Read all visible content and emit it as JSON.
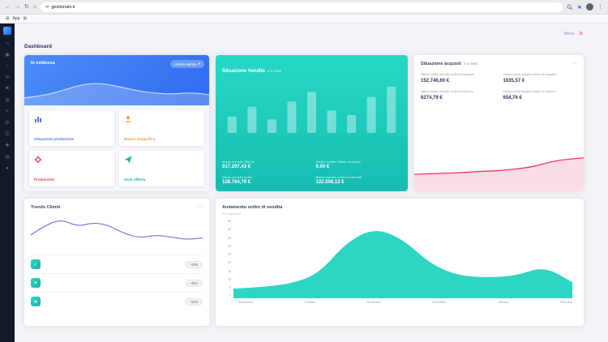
{
  "colors": {
    "primary_blue": "#2e6bf0",
    "teal": "#1fcdbb",
    "red": "#f5365c",
    "orange": "#fb6340",
    "purple": "#8965e0",
    "pink_fill": "#fbdce4",
    "sidebar_bg": "#121a2b"
  },
  "browser": {
    "url": "gestionale.it",
    "bookmark_app": "App",
    "icons": {
      "back": "←",
      "forward": "→",
      "reload": "↻",
      "home": "⌂",
      "star": "★",
      "menu": "⋮",
      "site": "⇄",
      "grid": "⊞"
    }
  },
  "sidebar": {
    "icons": [
      {
        "name": "dashboard",
        "glyph": "⌂"
      },
      {
        "name": "products",
        "glyph": "▣"
      },
      {
        "name": "reports",
        "glyph": "◔"
      },
      {
        "name": "messages",
        "glyph": "✉"
      },
      {
        "name": "projects",
        "glyph": "⚑"
      },
      {
        "name": "modules",
        "glyph": "⊞"
      },
      {
        "name": "documents",
        "glyph": "✎"
      },
      {
        "name": "settings",
        "glyph": "⚙"
      },
      {
        "name": "lists",
        "glyph": "☰"
      },
      {
        "name": "create",
        "glyph": "✚"
      },
      {
        "name": "archive",
        "glyph": "▤"
      },
      {
        "name": "status",
        "glyph": "●"
      }
    ]
  },
  "header": {
    "menu": "Menu",
    "brand": "✳"
  },
  "page_title": "Dashboard",
  "evidenza": {
    "title": "In evidenza",
    "dropdown": "Admin vetrina",
    "chevron": "▾",
    "tiles": [
      {
        "label": "Situazione produzione"
      },
      {
        "label": "Nuova anagrafica"
      },
      {
        "label": "Produzione"
      },
      {
        "label": "Invio offerta"
      }
    ],
    "wave": [
      22,
      30,
      48,
      70,
      78,
      66,
      50,
      40,
      36,
      42,
      34
    ]
  },
  "vendite": {
    "title": "Situazione Vendite",
    "period": "a 3 mesi",
    "bars": [
      22,
      35,
      18,
      42,
      55,
      30,
      24,
      48,
      62
    ],
    "stats": [
      {
        "label": "Media mensile Offerte",
        "value": "517.297,43 €"
      },
      {
        "label": "Media vendita Offerte accettate",
        "value": "0,00 €"
      },
      {
        "label": "Media mensile ordini",
        "value": "128.764,79 €"
      },
      {
        "label": "Media mensile ordini confermati",
        "value": "122.598,12 €"
      }
    ]
  },
  "acquisti": {
    "title": "Situazione acquisti",
    "period": "a 3 mesi",
    "kebab": "⋯",
    "stats": [
      {
        "label": "Valore medio mensile ordini di acquisto",
        "value": "152.746,60 €"
      },
      {
        "label": "Valore medio singolo ordine di acquisto",
        "value": "1635,57 €"
      },
      {
        "label": "Valore medio mensile ordini di c/lavoro",
        "value": "6274,79 €"
      },
      {
        "label": "Valore medio singolo ordine di c/lavoro",
        "value": "654,76 €"
      }
    ],
    "trend": [
      28,
      29,
      30,
      31,
      33,
      34,
      36,
      39,
      44,
      52,
      56,
      58
    ]
  },
  "trends": {
    "title": "Trends Clienti",
    "kebab": "⋯",
    "line": [
      35,
      60,
      72,
      55,
      65,
      58,
      38,
      28,
      35,
      30,
      24,
      28
    ],
    "rows": [
      {
        "icon": "✓",
        "value": "+105"
      },
      {
        "icon": "✦",
        "value": "-804"
      },
      {
        "icon": "★",
        "value": "+203"
      }
    ]
  },
  "andamento": {
    "title": "Andamento ordini di vendita",
    "subtitle": "5% superiore",
    "area": [
      5,
      6,
      8,
      14,
      34,
      43,
      36,
      20,
      13,
      12,
      13,
      19,
      9
    ],
    "yticks": [
      "45",
      "40",
      "35",
      "30",
      "25",
      "20",
      "15",
      "10",
      "5",
      "0"
    ],
    "months": [
      "September",
      "October",
      "November",
      "December",
      "January",
      "February"
    ]
  }
}
